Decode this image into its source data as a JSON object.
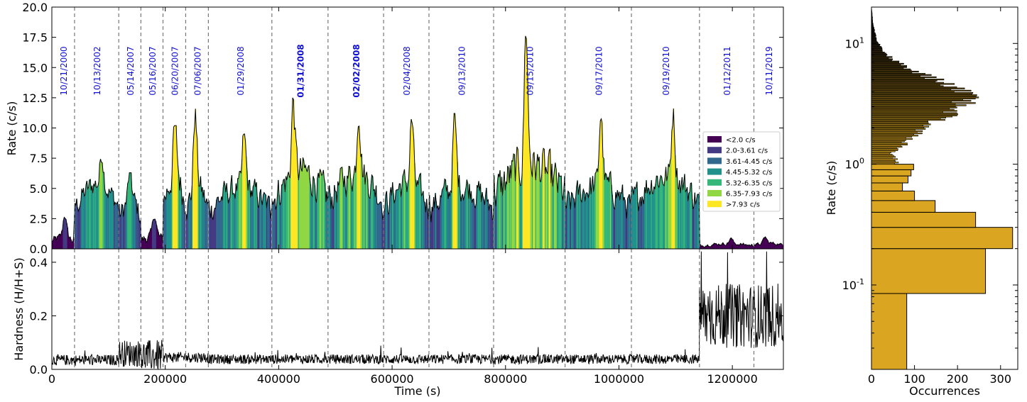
{
  "chart_data": [
    {
      "type": "area",
      "panel": "rate-light-curve",
      "xlabel": "",
      "ylabel": "Rate (c/s)",
      "xlim": [
        0,
        1290000
      ],
      "ylim": [
        0.0,
        20.0
      ],
      "yticks": [
        0.0,
        2.5,
        5.0,
        7.5,
        10.0,
        12.5,
        15.0,
        17.5,
        20.0
      ],
      "ytick_labels": [
        "0.0",
        "2.5",
        "5.0",
        "7.5",
        "10.0",
        "12.5",
        "15.0",
        "17.5",
        "20.0"
      ],
      "observations": [
        {
          "date": "10/21/2000",
          "start": 0,
          "end": 40000,
          "bold": false
        },
        {
          "date": "10/13/2002",
          "start": 40000,
          "end": 118000,
          "bold": false
        },
        {
          "date": "05/14/2007",
          "start": 118000,
          "end": 157000,
          "bold": false
        },
        {
          "date": "05/16/2007",
          "start": 157000,
          "end": 196000,
          "bold": false
        },
        {
          "date": "06/20/2007",
          "start": 196000,
          "end": 236000,
          "bold": false
        },
        {
          "date": "07/06/2007",
          "start": 236000,
          "end": 276000,
          "bold": false
        },
        {
          "date": "01/29/2008",
          "start": 276000,
          "end": 388000,
          "bold": false
        },
        {
          "date": "01/31/2008",
          "start": 388000,
          "end": 487000,
          "bold": true
        },
        {
          "date": "02/02/2008",
          "start": 487000,
          "end": 585000,
          "bold": true
        },
        {
          "date": "02/04/2008",
          "start": 585000,
          "end": 665000,
          "bold": false
        },
        {
          "date": "09/13/2010",
          "start": 665000,
          "end": 779000,
          "bold": false
        },
        {
          "date": "09/15/2010",
          "start": 779000,
          "end": 905000,
          "bold": false
        },
        {
          "date": "09/17/2010",
          "start": 905000,
          "end": 1022000,
          "bold": false
        },
        {
          "date": "09/19/2010",
          "start": 1022000,
          "end": 1142000,
          "bold": false
        },
        {
          "date": "01/12/2011",
          "start": 1142000,
          "end": 1238000,
          "bold": false
        },
        {
          "date": "10/11/2019",
          "start": 1238000,
          "end": 1290000,
          "bold": false
        }
      ],
      "divider_times": [
        40000,
        118000,
        157000,
        196000,
        236000,
        276000,
        388000,
        487000,
        585000,
        665000,
        779000,
        905000,
        1022000,
        1142000,
        1238000
      ],
      "segment_levels": [
        {
          "t0": 0,
          "t1": 40000,
          "base": 0.8,
          "amp": 0.6,
          "peak": 3.0
        },
        {
          "t0": 40000,
          "t1": 118000,
          "base": 4.5,
          "amp": 1.5,
          "peak": 7.6
        },
        {
          "t0": 118000,
          "t1": 157000,
          "base": 3.3,
          "amp": 1.6,
          "peak": 6.3
        },
        {
          "t0": 157000,
          "t1": 196000,
          "base": 0.9,
          "amp": 0.7,
          "peak": 3.0
        },
        {
          "t0": 196000,
          "t1": 236000,
          "base": 5.0,
          "amp": 2.2,
          "peak": 10.2
        },
        {
          "t0": 236000,
          "t1": 276000,
          "base": 4.2,
          "amp": 2.0,
          "peak": 11.6
        },
        {
          "t0": 276000,
          "t1": 388000,
          "base": 4.2,
          "amp": 1.8,
          "peak": 9.5
        },
        {
          "t0": 388000,
          "t1": 487000,
          "base": 5.3,
          "amp": 2.3,
          "peak": 12.5
        },
        {
          "t0": 487000,
          "t1": 585000,
          "base": 5.2,
          "amp": 2.2,
          "peak": 11.6
        },
        {
          "t0": 585000,
          "t1": 665000,
          "base": 4.5,
          "amp": 2.0,
          "peak": 10.8
        },
        {
          "t0": 665000,
          "t1": 779000,
          "base": 4.3,
          "amp": 2.0,
          "peak": 11.2
        },
        {
          "t0": 779000,
          "t1": 905000,
          "base": 5.8,
          "amp": 2.8,
          "peak": 19.4
        },
        {
          "t0": 905000,
          "t1": 1022000,
          "base": 4.4,
          "amp": 2.0,
          "peak": 11.4
        },
        {
          "t0": 1022000,
          "t1": 1142000,
          "base": 5.0,
          "amp": 2.0,
          "peak": 11.6
        },
        {
          "t0": 1142000,
          "t1": 1238000,
          "base": 0.35,
          "amp": 0.2,
          "peak": 0.9
        },
        {
          "t0": 1238000,
          "t1": 1290000,
          "base": 0.4,
          "amp": 0.2,
          "peak": 1.0
        }
      ],
      "legend": {
        "placement": "center-right",
        "entries": [
          {
            "label": "<2.0 c/s",
            "color": "#440154"
          },
          {
            "label": "2.0-3.61 c/s",
            "color": "#443983"
          },
          {
            "label": "3.61-4.45 c/s",
            "color": "#31688e"
          },
          {
            "label": "4.45-5.32 c/s",
            "color": "#21918c"
          },
          {
            "label": "5.32-6.35 c/s",
            "color": "#35b779"
          },
          {
            "label": "6.35-7.93 c/s",
            "color": "#90d743"
          },
          {
            "label": ">7.93 c/s",
            "color": "#fde725"
          }
        ]
      },
      "thresholds": [
        2.0,
        3.61,
        4.45,
        5.32,
        6.35,
        7.93
      ]
    },
    {
      "type": "line",
      "panel": "hardness-ratio",
      "xlabel": "Time (s)",
      "ylabel": "Hardness (H/H+S)",
      "xlim": [
        0,
        1290000
      ],
      "ylim": [
        0.0,
        0.45
      ],
      "xticks": [
        0,
        200000,
        400000,
        600000,
        800000,
        1000000,
        1200000
      ],
      "xtick_labels": [
        "0",
        "200000",
        "400000",
        "600000",
        "800000",
        "1000000",
        "1200000"
      ],
      "yticks": [
        0.0,
        0.2,
        0.4
      ],
      "ytick_labels": [
        "0.0",
        "0.2",
        "0.4"
      ],
      "segment_levels": [
        {
          "t0": 0,
          "t1": 118000,
          "base": 0.035,
          "amp": 0.02
        },
        {
          "t0": 118000,
          "t1": 157000,
          "base": 0.06,
          "amp": 0.05
        },
        {
          "t0": 157000,
          "t1": 196000,
          "base": 0.05,
          "amp": 0.06
        },
        {
          "t0": 196000,
          "t1": 276000,
          "base": 0.045,
          "amp": 0.02
        },
        {
          "t0": 276000,
          "t1": 1142000,
          "base": 0.038,
          "amp": 0.018
        },
        {
          "t0": 1142000,
          "t1": 1290000,
          "base": 0.2,
          "amp": 0.12
        }
      ]
    },
    {
      "type": "bar",
      "panel": "rate-histogram",
      "orientation": "horizontal",
      "xlabel": "Occurrences",
      "ylabel": "Rate (c/s)",
      "yscale": "log",
      "ylim": [
        0.02,
        20
      ],
      "xlim": [
        0,
        340
      ],
      "xticks": [
        0,
        100,
        200,
        300
      ],
      "xtick_labels": [
        "0",
        "100",
        "200",
        "300"
      ],
      "ytick_labels": [
        "10",
        "10",
        "10"
      ],
      "ytick_exponents": [
        "-1",
        "0",
        "1"
      ],
      "ytick_values": [
        0.1,
        1,
        10
      ],
      "bar_color": "#daa520",
      "bins_low_rate": [
        {
          "lo": 0.02,
          "hi": 0.085,
          "count": 82
        },
        {
          "lo": 0.085,
          "hi": 0.2,
          "count": 265
        },
        {
          "lo": 0.2,
          "hi": 0.3,
          "count": 328
        },
        {
          "lo": 0.3,
          "hi": 0.4,
          "count": 242
        },
        {
          "lo": 0.4,
          "hi": 0.5,
          "count": 148
        },
        {
          "lo": 0.5,
          "hi": 0.6,
          "count": 100
        },
        {
          "lo": 0.6,
          "hi": 0.7,
          "count": 72
        },
        {
          "lo": 0.7,
          "hi": 0.8,
          "count": 85
        },
        {
          "lo": 0.8,
          "hi": 0.9,
          "count": 92
        },
        {
          "lo": 0.9,
          "hi": 1.0,
          "count": 98
        }
      ],
      "rate_curve": {
        "x": [
          1.0,
          1.2,
          1.5,
          2.0,
          2.5,
          3.0,
          3.5,
          4.0,
          4.5,
          5.0,
          6.0,
          7.0,
          8.0,
          10.0,
          12.0,
          15.0,
          20.0
        ],
        "counts": [
          60,
          45,
          80,
          120,
          170,
          210,
          225,
          215,
          180,
          150,
          95,
          60,
          35,
          15,
          8,
          3,
          0
        ]
      }
    }
  ]
}
